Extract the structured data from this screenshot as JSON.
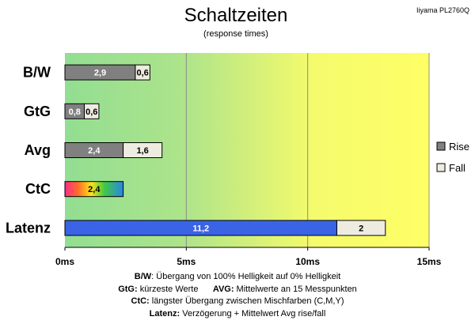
{
  "header": {
    "title": "Schaltzeiten",
    "subtitle": "(response times)",
    "model": "Iiyama PL2760Q"
  },
  "chart_data": {
    "type": "bar",
    "orientation": "horizontal",
    "stacked": true,
    "categories": [
      "B/W",
      "GtG",
      "Avg",
      "CtC",
      "Latenz"
    ],
    "series": [
      {
        "name": "Rise",
        "values": [
          2.9,
          0.8,
          2.4,
          2.4,
          11.2
        ],
        "labels": [
          "2,9",
          "0,8",
          "2,4",
          "2,4",
          "11,2"
        ]
      },
      {
        "name": "Fall",
        "values": [
          0.6,
          0.6,
          1.6,
          null,
          2
        ],
        "labels": [
          "0,6",
          "0,6",
          "1,6",
          "",
          "2"
        ]
      }
    ],
    "x_ticks": [
      0,
      5,
      10,
      15
    ],
    "x_tick_labels": [
      "0ms",
      "5ms",
      "10ms",
      "15ms"
    ],
    "xlim": [
      0,
      15
    ],
    "grid": true,
    "legend": "right",
    "colors": {
      "rise": "#808080",
      "fall": "#eeece1",
      "latenz_rise": "#3a63e6",
      "zone_green": "#92de92",
      "zone_yellow": "#ffff66"
    }
  },
  "notes": [
    {
      "key": "B/W",
      "text": ": Übergang von 100% Helligkeit auf 0% Helligkeit"
    },
    {
      "key": "GtG:",
      "text": " kürzeste Werte",
      "key2": "AVG:",
      "text2": " Mittelwerte an 15 Messpunkten"
    },
    {
      "key": "CtC:",
      "text": " längster Übergang zwischen Mischfarben (C,M,Y)"
    },
    {
      "key": "Latenz:",
      "text": " Verzögerung + Mittelwert Avg rise/fall"
    }
  ]
}
